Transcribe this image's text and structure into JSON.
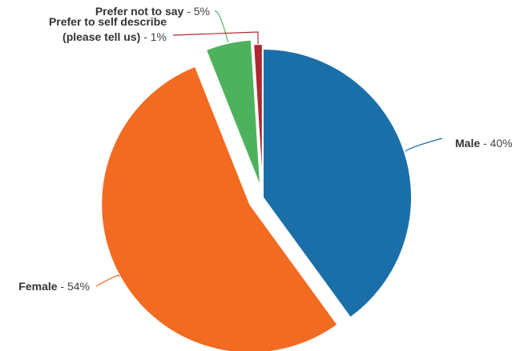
{
  "chart_data": {
    "type": "pie",
    "title": "",
    "legend": "none",
    "slices": [
      {
        "label": "Male",
        "value": 40,
        "value_text": "40%",
        "color": "#1a6fa8"
      },
      {
        "label": "Female",
        "value": 54,
        "value_text": "54%",
        "color": "#f26b21"
      },
      {
        "label": "Prefer not to say",
        "value": 5,
        "value_text": "5%",
        "color": "#4eb25d"
      },
      {
        "label": "Prefer to self describe (please tell us)",
        "label_lines": [
          "Prefer to self describe",
          "(please tell us)"
        ],
        "value": 1,
        "value_text": "1%",
        "color": "#b0282f"
      }
    ]
  }
}
